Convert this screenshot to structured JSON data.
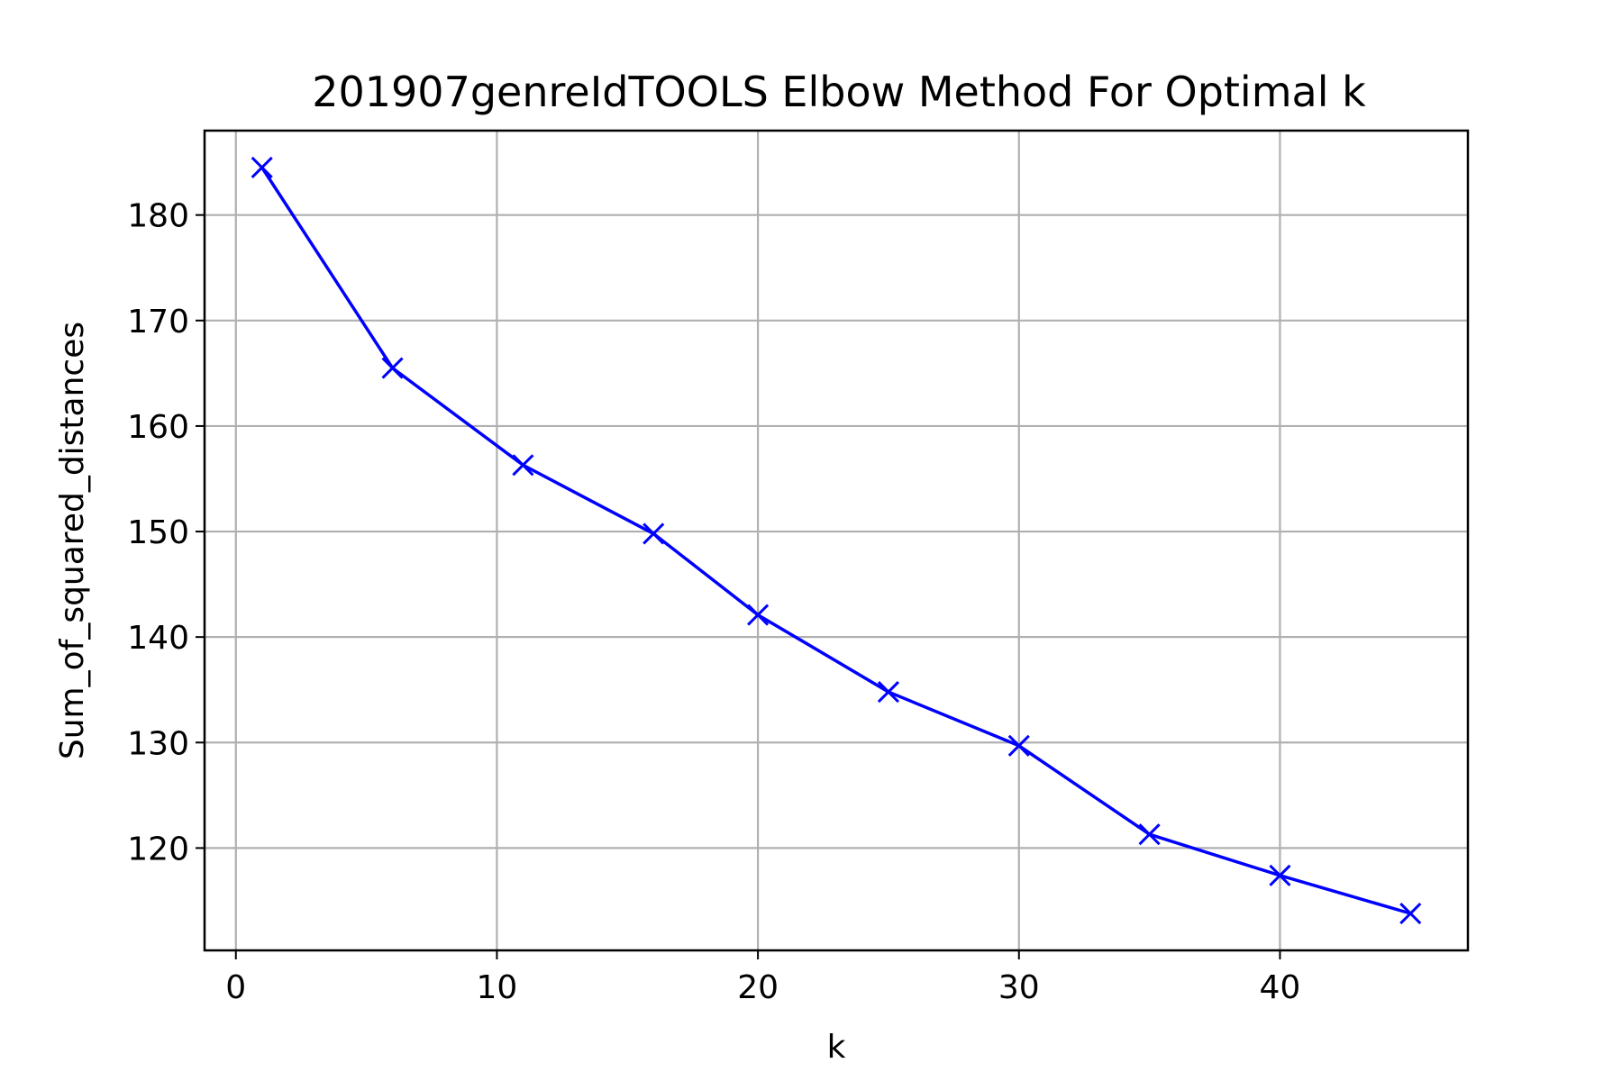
{
  "chart_data": {
    "type": "line",
    "title": "201907genreIdTOOLS Elbow Method For Optimal k",
    "xlabel": "k",
    "ylabel": "Sum_of_squared_distances",
    "xlim": [
      -1.2,
      47.2
    ],
    "ylim": [
      110.3,
      188.0
    ],
    "x_ticks": [
      0,
      10,
      20,
      30,
      40
    ],
    "y_ticks": [
      120,
      130,
      140,
      150,
      160,
      170,
      180
    ],
    "x_tick_labels": [
      "0",
      "10",
      "20",
      "30",
      "40"
    ],
    "y_tick_labels": [
      "120",
      "130",
      "140",
      "150",
      "160",
      "170",
      "180"
    ],
    "grid": true,
    "legend": "none",
    "marker": "x",
    "series": [
      {
        "color": "#0000ff",
        "x": [
          1,
          6,
          11,
          16,
          20,
          25,
          30,
          35,
          40,
          45
        ],
        "y": [
          184.5,
          165.5,
          156.3,
          149.8,
          142.1,
          134.8,
          129.7,
          121.3,
          117.4,
          113.8
        ]
      }
    ]
  }
}
